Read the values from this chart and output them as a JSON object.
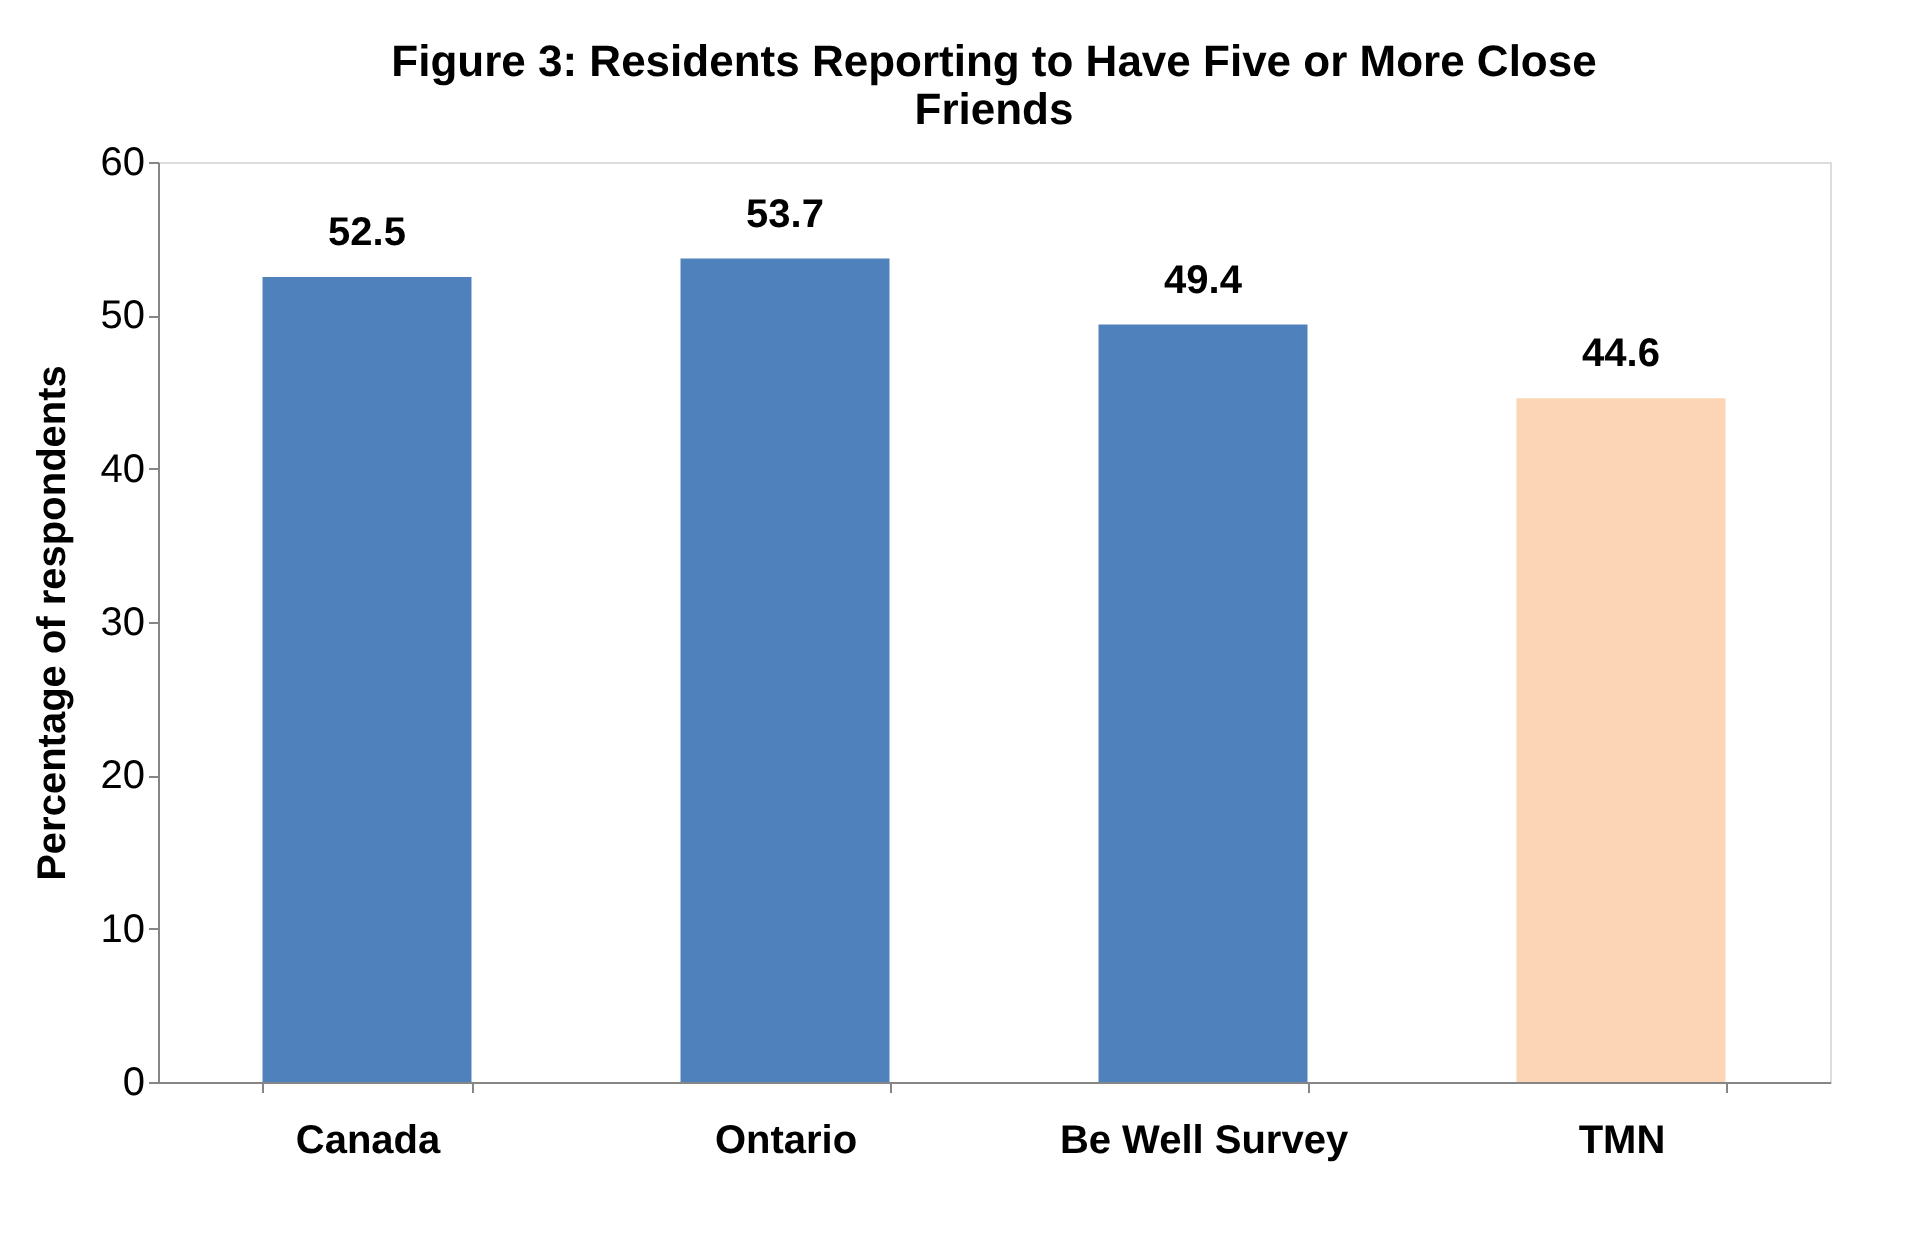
{
  "chart_data": {
    "type": "bar",
    "title": [
      "Figure 3: Residents Reporting to Have Five or More Close",
      "Friends"
    ],
    "ylabel": "Percentage of respondents",
    "categories": [
      "Canada",
      "Ontario",
      "Be Well Survey",
      "TMN"
    ],
    "values": [
      52.5,
      53.7,
      49.4,
      44.6
    ],
    "colors": [
      "#4f81bd",
      "#4f81bd",
      "#4f81bd",
      "#fbd5b5"
    ],
    "ylim": [
      0,
      60
    ],
    "yticks": [
      0,
      10,
      20,
      30,
      40,
      50,
      60
    ],
    "data_labels": true,
    "grid": false
  }
}
